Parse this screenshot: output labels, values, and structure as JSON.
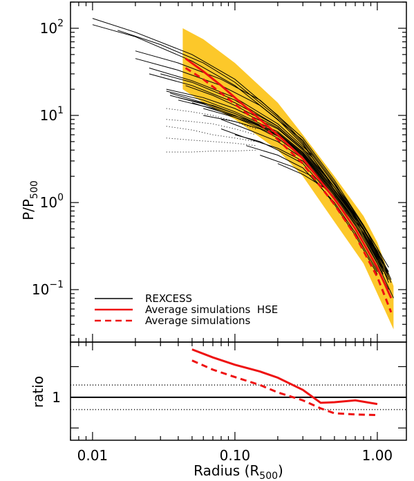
{
  "chart_data": [
    {
      "type": "line",
      "xscale": "log",
      "yscale": "log",
      "xlim": [
        0.007,
        1.6
      ],
      "ylim": [
        0.025,
        200
      ],
      "ylabel": {
        "base": "P/P",
        "sub": "500"
      },
      "yticks": [
        {
          "value": 0.1,
          "base": "10",
          "exp": "−1"
        },
        {
          "value": 1,
          "base": "10",
          "exp": "0"
        },
        {
          "value": 10,
          "base": "10",
          "exp": "1"
        },
        {
          "value": 100,
          "base": "10",
          "exp": "2"
        }
      ],
      "colors": {
        "simulations": "#ee1111",
        "scatter_band": "#fcc82a",
        "rexcess": "#000000"
      },
      "legend": {
        "position": "bottom-left",
        "entries": [
          {
            "label": "REXCESS",
            "style": "solid-black"
          },
          {
            "label": "Average simulations  HSE",
            "style": "solid-red"
          },
          {
            "label": "Average simulations",
            "style": "dashed-red"
          }
        ]
      },
      "series": [
        {
          "name": "Average simulations  HSE",
          "style": "solid-red",
          "x": [
            0.045,
            0.06,
            0.08,
            0.1,
            0.15,
            0.2,
            0.3,
            0.5,
            0.7,
            1.0,
            1.25
          ],
          "y": [
            45,
            32,
            22,
            16,
            9,
            6,
            3.2,
            1.1,
            0.5,
            0.18,
            0.08
          ]
        },
        {
          "name": "Average simulations",
          "style": "dashed-red",
          "x": [
            0.045,
            0.06,
            0.08,
            0.1,
            0.15,
            0.2,
            0.3,
            0.5,
            0.7,
            1.0,
            1.25
          ],
          "y": [
            35,
            26,
            18,
            13.5,
            8,
            5.3,
            2.8,
            0.95,
            0.42,
            0.14,
            0.055
          ]
        },
        {
          "style": "scatter-band-upper",
          "x": [
            0.043,
            0.06,
            0.1,
            0.2,
            0.3,
            0.5,
            0.8,
            1.0,
            1.3
          ],
          "y": [
            100,
            75,
            40,
            14,
            6,
            2,
            0.7,
            0.35,
            0.11
          ]
        },
        {
          "style": "scatter-band-lower",
          "x": [
            0.043,
            0.06,
            0.1,
            0.2,
            0.3,
            0.5,
            0.8,
            1.0,
            1.3
          ],
          "y": [
            20,
            14,
            9,
            4,
            2,
            0.6,
            0.2,
            0.09,
            0.035
          ]
        }
      ],
      "rexcess_profiles": [
        {
          "x": [
            0.01,
            0.02,
            0.05,
            0.1,
            0.2,
            0.3,
            0.5,
            0.7,
            1.0
          ],
          "y": [
            130,
            90,
            50,
            26,
            10,
            5,
            1.6,
            0.7,
            0.25
          ]
        },
        {
          "x": [
            0.01,
            0.02,
            0.05,
            0.1,
            0.2,
            0.3,
            0.5,
            0.7,
            1.0
          ],
          "y": [
            110,
            80,
            42,
            22,
            9,
            4.6,
            1.5,
            0.65,
            0.22
          ]
        },
        {
          "x": [
            0.015,
            0.03,
            0.06,
            0.1,
            0.2,
            0.3,
            0.5,
            0.8,
            1.1
          ],
          "y": [
            95,
            65,
            40,
            24,
            9.5,
            4.8,
            1.4,
            0.5,
            0.16
          ]
        },
        {
          "x": [
            0.02,
            0.04,
            0.08,
            0.15,
            0.3,
            0.5,
            0.8,
            1.1
          ],
          "y": [
            55,
            40,
            26,
            15,
            5.5,
            1.8,
            0.55,
            0.2
          ]
        },
        {
          "x": [
            0.02,
            0.04,
            0.08,
            0.15,
            0.3,
            0.5,
            0.8,
            1.1
          ],
          "y": [
            45,
            33,
            22,
            13,
            5.2,
            1.7,
            0.5,
            0.18
          ]
        },
        {
          "x": [
            0.025,
            0.05,
            0.1,
            0.2,
            0.35,
            0.6,
            1.0,
            1.25
          ],
          "y": [
            35,
            25,
            16,
            8,
            3.5,
            1.1,
            0.3,
            0.13
          ]
        },
        {
          "x": [
            0.025,
            0.05,
            0.1,
            0.2,
            0.35,
            0.6,
            1.0,
            1.25
          ],
          "y": [
            30,
            22,
            14,
            7.5,
            3.3,
            1.0,
            0.28,
            0.12
          ]
        },
        {
          "x": [
            0.03,
            0.05,
            0.1,
            0.2,
            0.3,
            0.5,
            0.8,
            1.0,
            1.2
          ],
          "y": [
            30,
            24,
            15,
            7.5,
            4.2,
            1.5,
            0.5,
            0.25,
            0.12
          ]
        },
        {
          "x": [
            0.033,
            0.06,
            0.1,
            0.2,
            0.3,
            0.5,
            0.8,
            1.2
          ],
          "y": [
            20,
            16,
            12,
            7,
            4,
            1.5,
            0.55,
            0.18
          ]
        },
        {
          "x": [
            0.033,
            0.06,
            0.1,
            0.2,
            0.3,
            0.5,
            0.8,
            1.2
          ],
          "y": [
            19,
            15,
            11,
            6.5,
            3.8,
            1.4,
            0.5,
            0.16
          ]
        },
        {
          "x": [
            0.035,
            0.06,
            0.1,
            0.2,
            0.3,
            0.5,
            0.8,
            1.2
          ],
          "y": [
            18,
            14,
            10.5,
            6.2,
            3.6,
            1.3,
            0.48,
            0.15
          ]
        },
        {
          "x": [
            0.035,
            0.06,
            0.1,
            0.2,
            0.3,
            0.5,
            0.8,
            1.2
          ],
          "y": [
            17,
            13.5,
            10,
            6,
            3.5,
            1.25,
            0.45,
            0.14
          ]
        },
        {
          "x": [
            0.04,
            0.07,
            0.1,
            0.2,
            0.3,
            0.5,
            0.8,
            1.2
          ],
          "y": [
            16,
            13,
            10.5,
            6.3,
            3.7,
            1.35,
            0.5,
            0.15
          ]
        },
        {
          "x": [
            0.04,
            0.07,
            0.1,
            0.2,
            0.3,
            0.5,
            0.8,
            1.2
          ],
          "y": [
            15,
            12,
            9.5,
            5.8,
            3.4,
            1.25,
            0.45,
            0.13
          ]
        },
        {
          "x": [
            0.045,
            0.07,
            0.1,
            0.2,
            0.3,
            0.5,
            0.8,
            1.1
          ],
          "y": [
            22,
            17,
            13,
            7.2,
            4.0,
            1.4,
            0.5,
            0.2
          ]
        },
        {
          "x": [
            0.05,
            0.08,
            0.12,
            0.2,
            0.3,
            0.5,
            0.8,
            1.1
          ],
          "y": [
            14,
            11,
            9,
            6,
            3.6,
            1.3,
            0.45,
            0.18
          ]
        },
        {
          "x": [
            0.06,
            0.1,
            0.15,
            0.2,
            0.3,
            0.5,
            0.8,
            1.1
          ],
          "y": [
            10,
            8.5,
            7,
            5.5,
            3.3,
            1.2,
            0.4,
            0.15
          ]
        },
        {
          "x": [
            0.06,
            0.1,
            0.15,
            0.2,
            0.3,
            0.5,
            0.8,
            1.1
          ],
          "y": [
            12,
            9.5,
            7.5,
            5.8,
            3.5,
            1.25,
            0.42,
            0.16
          ]
        },
        {
          "x": [
            0.08,
            0.12,
            0.2,
            0.3,
            0.5,
            0.7,
            1.0,
            1.3
          ],
          "y": [
            9,
            7,
            5,
            3.2,
            1.2,
            0.55,
            0.2,
            0.08
          ]
        },
        {
          "x": [
            0.08,
            0.12,
            0.2,
            0.3,
            0.5,
            0.7,
            1.0,
            1.2
          ],
          "y": [
            7,
            5.5,
            4.2,
            3.0,
            1.15,
            0.5,
            0.18,
            0.1
          ]
        },
        {
          "x": [
            0.1,
            0.15,
            0.2,
            0.3,
            0.5,
            0.7,
            1.0,
            1.25
          ],
          "y": [
            6,
            5,
            4,
            2.8,
            1.1,
            0.5,
            0.17,
            0.08
          ]
        },
        {
          "x": [
            0.12,
            0.2,
            0.3,
            0.5,
            0.7,
            1.0
          ],
          "y": [
            4.5,
            3.5,
            2.5,
            1.0,
            0.45,
            0.16
          ]
        },
        {
          "x": [
            0.15,
            0.25,
            0.35,
            0.5,
            0.7,
            1.0
          ],
          "y": [
            3.5,
            2.6,
            2.0,
            0.95,
            0.42,
            0.15
          ]
        },
        {
          "x": [
            0.2,
            0.3,
            0.45,
            0.6,
            0.8,
            1.0
          ],
          "y": [
            2.8,
            2.1,
            1.4,
            0.75,
            0.35,
            0.17
          ]
        }
      ],
      "dotted_profiles": [
        {
          "x": [
            0.033,
            0.05,
            0.07,
            0.1,
            0.14
          ],
          "y": [
            12,
            11,
            10,
            8.5,
            7
          ]
        },
        {
          "x": [
            0.033,
            0.05,
            0.07,
            0.1,
            0.14
          ],
          "y": [
            9,
            8.5,
            8,
            7,
            6
          ]
        },
        {
          "x": [
            0.033,
            0.05,
            0.07,
            0.1,
            0.14
          ],
          "y": [
            7.5,
            6.8,
            6,
            5.5,
            5
          ]
        },
        {
          "x": [
            0.033,
            0.05,
            0.07,
            0.1,
            0.14
          ],
          "y": [
            5.5,
            5.2,
            5,
            4.8,
            4.5
          ]
        },
        {
          "x": [
            0.033,
            0.05,
            0.07,
            0.1,
            0.14
          ],
          "y": [
            3.8,
            3.8,
            3.9,
            3.9,
            4.0
          ]
        }
      ]
    },
    {
      "type": "line",
      "xscale": "log",
      "yscale": "linear",
      "xlim": [
        0.007,
        1.6
      ],
      "ylim": [
        0.3,
        1.9
      ],
      "xlabel": {
        "base": "Radius (R",
        "sub": "500",
        "suffix": ")"
      },
      "ylabel": "ratio",
      "xticks": [
        {
          "value": 0.01,
          "label": "0.01"
        },
        {
          "value": 0.1,
          "label": "0.10"
        },
        {
          "value": 1,
          "label": "1.00"
        }
      ],
      "yticks": [
        {
          "value": 1,
          "label": "1"
        }
      ],
      "reference_lines": [
        {
          "y": 1.0,
          "style": "solid"
        },
        {
          "y": 1.2,
          "style": "dotted"
        },
        {
          "y": 0.8,
          "style": "dotted"
        }
      ],
      "series": [
        {
          "style": "solid-red",
          "x": [
            0.05,
            0.07,
            0.1,
            0.15,
            0.2,
            0.3,
            0.4,
            0.5,
            0.7,
            1.0
          ],
          "y": [
            1.78,
            1.65,
            1.53,
            1.42,
            1.32,
            1.12,
            0.91,
            0.92,
            0.95,
            0.89
          ]
        },
        {
          "style": "dashed-red",
          "x": [
            0.05,
            0.07,
            0.1,
            0.15,
            0.2,
            0.3,
            0.4,
            0.5,
            0.7,
            1.0
          ],
          "y": [
            1.6,
            1.45,
            1.33,
            1.2,
            1.08,
            0.95,
            0.82,
            0.74,
            0.72,
            0.71
          ]
        }
      ]
    }
  ]
}
